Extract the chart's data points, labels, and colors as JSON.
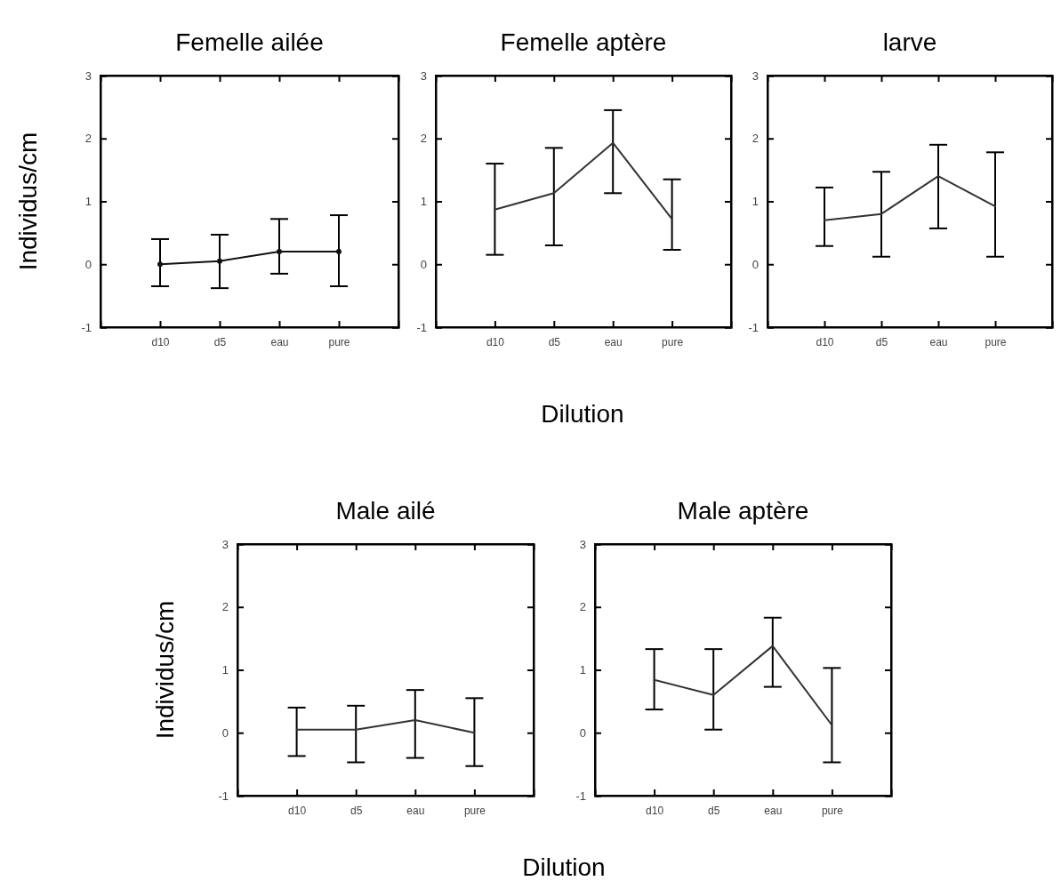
{
  "chart_data": [
    {
      "type": "line",
      "title": "Femelle ailée",
      "ylabel": "Individus/cm",
      "categories": [
        "d10",
        "d5",
        "eau",
        "pure"
      ],
      "marker": "circle",
      "series": [
        {
          "color": "#111111",
          "values": [
            0,
            0.05,
            0.2,
            0.2
          ],
          "errors": [
            [
              -0.35,
              0.4
            ],
            [
              -0.38,
              0.47
            ],
            [
              -0.15,
              0.72
            ],
            [
              -0.35,
              0.78
            ]
          ]
        }
      ],
      "ylim": [
        -1,
        3
      ],
      "yticks": [
        -1,
        0,
        1,
        2,
        3
      ],
      "grid": false
    },
    {
      "type": "line",
      "title": "Femelle aptère",
      "xlabel": "Dilution",
      "categories": [
        "d10",
        "d5",
        "eau",
        "pure"
      ],
      "series": [
        {
          "color": "#333333",
          "values": [
            0.87,
            1.13,
            1.93,
            0.72
          ],
          "errors": [
            [
              0.15,
              1.6
            ],
            [
              0.3,
              1.85
            ],
            [
              1.13,
              2.45
            ],
            [
              0.23,
              1.35
            ]
          ]
        }
      ],
      "ylim": [
        -1,
        3
      ],
      "yticks": [
        -1,
        0,
        1,
        2,
        3
      ],
      "grid": false
    },
    {
      "type": "line",
      "title": "larve",
      "categories": [
        "d10",
        "d5",
        "eau",
        "pure"
      ],
      "series": [
        {
          "color": "#333333",
          "values": [
            0.7,
            0.8,
            1.4,
            0.92
          ],
          "errors": [
            [
              0.29,
              1.22
            ],
            [
              0.12,
              1.47
            ],
            [
              0.57,
              1.9
            ],
            [
              0.12,
              1.78
            ]
          ]
        }
      ],
      "ylim": [
        -1,
        3
      ],
      "yticks": [
        -1,
        0,
        1,
        2,
        3
      ],
      "grid": false
    },
    {
      "type": "line",
      "title": "Male ailé",
      "ylabel": "Individus/cm",
      "xlabel": "Dilution",
      "categories": [
        "d10",
        "d5",
        "eau",
        "pure"
      ],
      "series": [
        {
          "color": "#333333",
          "values": [
            0.05,
            0.05,
            0.2,
            0
          ],
          "errors": [
            [
              -0.37,
              0.4
            ],
            [
              -0.47,
              0.43
            ],
            [
              -0.4,
              0.68
            ],
            [
              -0.53,
              0.55
            ]
          ]
        }
      ],
      "ylim": [
        -1,
        3
      ],
      "yticks": [
        -1,
        0,
        1,
        2,
        3
      ],
      "grid": false
    },
    {
      "type": "line",
      "title": "Male aptère",
      "categories": [
        "d10",
        "d5",
        "eau",
        "pure"
      ],
      "series": [
        {
          "color": "#333333",
          "values": [
            0.84,
            0.6,
            1.38,
            0.12
          ],
          "errors": [
            [
              0.37,
              1.33
            ],
            [
              0.05,
              1.33
            ],
            [
              0.73,
              1.83
            ],
            [
              -0.47,
              1.03
            ]
          ]
        }
      ],
      "ylim": [
        -1,
        3
      ],
      "yticks": [
        -1,
        0,
        1,
        2,
        3
      ],
      "grid": false
    }
  ]
}
